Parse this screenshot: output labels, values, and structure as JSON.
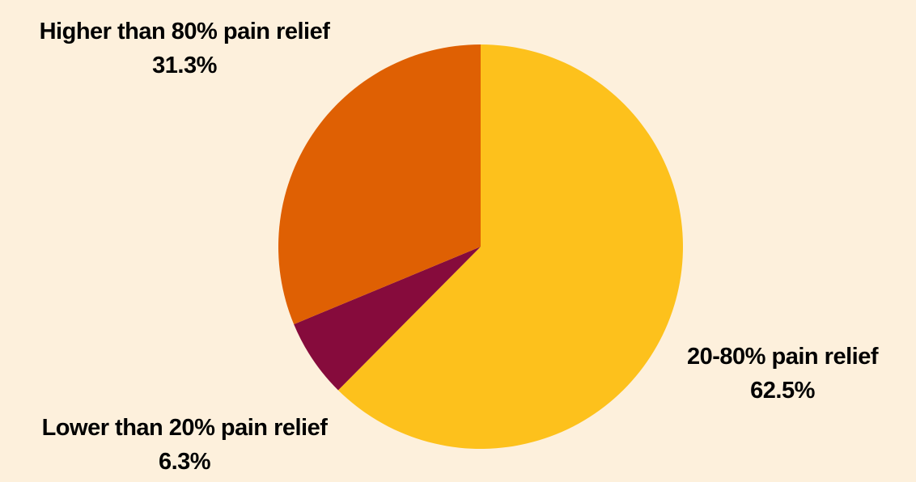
{
  "chart_data": {
    "type": "pie",
    "slices": [
      {
        "label": "20-80% pain relief",
        "value": 62.5,
        "value_label": "62.5%",
        "color": "#fdc11c"
      },
      {
        "label": "Lower than 20% pain relief",
        "value": 6.3,
        "value_label": "6.3%",
        "color": "#860b3c"
      },
      {
        "label": "Higher than 80% pain relief",
        "value": 31.3,
        "value_label": "31.3%",
        "color": "#df6003"
      }
    ],
    "start_angle_deg": 0,
    "direction": "clockwise",
    "background": "#fdf0dc"
  }
}
